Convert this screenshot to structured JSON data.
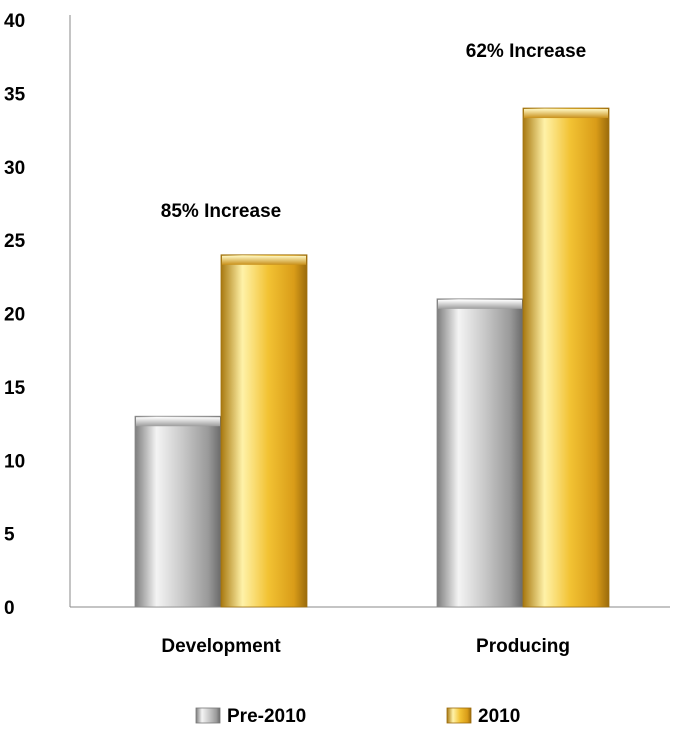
{
  "chart_data": {
    "type": "bar",
    "title": "",
    "xlabel": "",
    "ylabel": "",
    "categories": [
      "Development",
      "Producing"
    ],
    "series": [
      {
        "name": "Pre-2010",
        "values": [
          13,
          21
        ],
        "color": "#b8b8b8"
      },
      {
        "name": "2010",
        "values": [
          24,
          34
        ],
        "color": "#f2c233"
      }
    ],
    "ylim": [
      0,
      40
    ],
    "yticks": [
      0,
      5,
      10,
      15,
      20,
      25,
      30,
      35,
      40
    ],
    "annotations": [
      {
        "category": "Development",
        "text": "85% Increase"
      },
      {
        "category": "Producing",
        "text": "62% Increase"
      }
    ],
    "legend_position": "bottom",
    "grid": false
  }
}
